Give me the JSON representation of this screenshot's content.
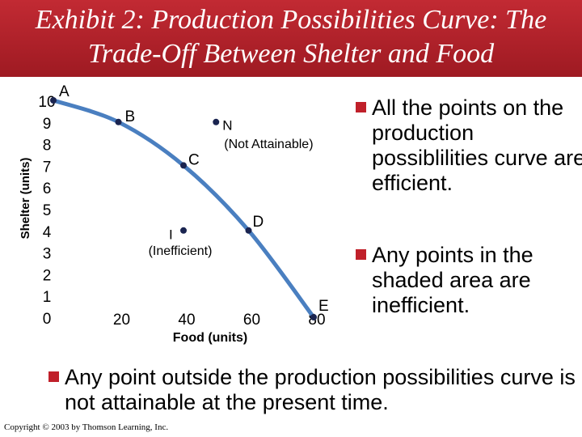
{
  "header": {
    "title": "Exhibit 2: Production Possibilities Curve: The Trade-Off Between Shelter and Food"
  },
  "bullets": [
    "All the points on the production possiblilities curve are efficient.",
    "Any points in the shaded area are inefficient.",
    "Any point outside the production possibilities curve is not attainable at the present time."
  ],
  "footer": "Copyright © 2003 by Thomson Learning, Inc.",
  "chart_data": {
    "type": "line",
    "x_label": "Food (units)",
    "y_label": "Shelter (units)",
    "xlim": [
      0,
      80
    ],
    "xticks": [
      20,
      40,
      60,
      80
    ],
    "ylim": [
      0,
      10
    ],
    "yticks": [
      0,
      1,
      2,
      3,
      4,
      5,
      6,
      7,
      8,
      9,
      10
    ],
    "series": [
      {
        "color": "#4a7fc0",
        "x": [
          0,
          20,
          40,
          60,
          80
        ],
        "values": [
          10,
          9,
          7,
          4,
          0
        ],
        "point_labels": [
          "A",
          "B",
          "C",
          "D",
          "E"
        ]
      }
    ],
    "points": [
      {
        "label": "N",
        "note": "(Not Attainable)",
        "x": 50,
        "y": 9
      },
      {
        "label": "I",
        "note": "(Inefficient)",
        "x": 40,
        "y": 4
      }
    ]
  }
}
